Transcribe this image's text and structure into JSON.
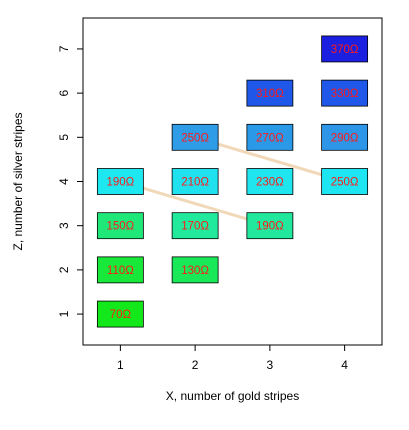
{
  "chart_data": {
    "type": "scatter",
    "xlabel": "X, number of gold stripes",
    "ylabel": "Z, number of silver stripes",
    "xlim": [
      0.5,
      4.5
    ],
    "ylim": [
      0.3,
      7.7
    ],
    "x_ticks": [
      "1",
      "2",
      "3",
      "4"
    ],
    "y_ticks": [
      "1",
      "2",
      "3",
      "4",
      "5",
      "6",
      "7"
    ],
    "points": [
      {
        "x": 1,
        "z": 1,
        "label": "70Ω",
        "color": "#13e81a"
      },
      {
        "x": 1,
        "z": 2,
        "label": "110Ω",
        "color": "#18e83a"
      },
      {
        "x": 2,
        "z": 2,
        "label": "130Ω",
        "color": "#19e858"
      },
      {
        "x": 1,
        "z": 3,
        "label": "150Ω",
        "color": "#1fe879"
      },
      {
        "x": 2,
        "z": 3,
        "label": "170Ω",
        "color": "#22ea9c"
      },
      {
        "x": 3,
        "z": 3,
        "label": "190Ω",
        "color": "#22e89e"
      },
      {
        "x": 1,
        "z": 4,
        "label": "190Ω",
        "color": "#1de8f0"
      },
      {
        "x": 2,
        "z": 4,
        "label": "210Ω",
        "color": "#20e2ef"
      },
      {
        "x": 3,
        "z": 4,
        "label": "230Ω",
        "color": "#1fe6ee"
      },
      {
        "x": 4,
        "z": 4,
        "label": "250Ω",
        "color": "#1de6f2"
      },
      {
        "x": 2,
        "z": 5,
        "label": "250Ω",
        "color": "#2f9ce8"
      },
      {
        "x": 3,
        "z": 5,
        "label": "270Ω",
        "color": "#2a9ae8"
      },
      {
        "x": 4,
        "z": 5,
        "label": "290Ω",
        "color": "#2e96e8"
      },
      {
        "x": 3,
        "z": 6,
        "label": "310Ω",
        "color": "#1f58e8"
      },
      {
        "x": 4,
        "z": 6,
        "label": "330Ω",
        "color": "#1f58e8"
      },
      {
        "x": 4,
        "z": 7,
        "label": "370Ω",
        "color": "#1a1fe0"
      }
    ],
    "label_color": "#ff1a1a",
    "connectors": [
      {
        "from": [
          1,
          4
        ],
        "to": [
          3,
          3
        ],
        "color": "#f0d8b8"
      },
      {
        "from": [
          2,
          5
        ],
        "to": [
          4,
          4
        ],
        "color": "#f0d8b8"
      }
    ]
  }
}
